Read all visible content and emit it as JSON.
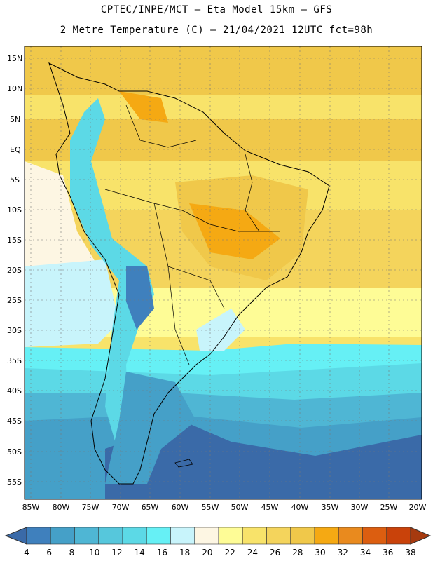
{
  "title_line1": "CPTEC/INPE/MCT  –  Eta Model 15km – GFS",
  "title_line2": "2 Metre Temperature (C) – 21/04/2021 12UTC fct=98h",
  "lat_labels": [
    "15N",
    "10N",
    "5N",
    "EQ",
    "5S",
    "10S",
    "15S",
    "20S",
    "25S",
    "30S",
    "35S",
    "40S",
    "45S",
    "50S",
    "55S"
  ],
  "lon_labels": [
    "85W",
    "80W",
    "75W",
    "70W",
    "65W",
    "60W",
    "55W",
    "50W",
    "45W",
    "40W",
    "35W",
    "30W",
    "25W",
    "20W"
  ],
  "colorbar": {
    "levels": [
      "4",
      "6",
      "8",
      "10",
      "12",
      "14",
      "16",
      "18",
      "20",
      "22",
      "24",
      "26",
      "28",
      "30",
      "32",
      "34",
      "36",
      "38"
    ],
    "colors": [
      "#3a6aa8",
      "#3f80bd",
      "#45a0c8",
      "#4fb6d4",
      "#56c7dc",
      "#5cd9e6",
      "#66f0f5",
      "#c8f4fb",
      "#fdf6e3",
      "#fefc96",
      "#f8e36a",
      "#f4d45c",
      "#f0c84a",
      "#f5a913",
      "#e98a1e",
      "#dc5e10",
      "#c9420a",
      "#a63a0f"
    ]
  }
}
